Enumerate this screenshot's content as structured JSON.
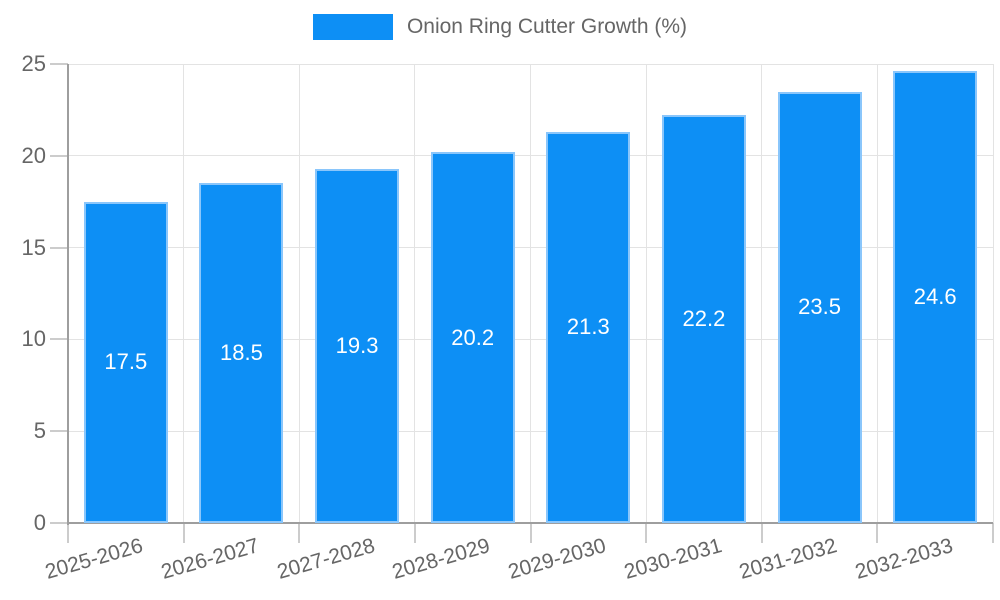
{
  "legend": {
    "label": "Onion Ring Cutter Growth (%)"
  },
  "colors": {
    "bar": "#0d8ff5",
    "bar_border": "#8ac6fb",
    "axis": "#9e9e9e",
    "tick": "#cccccc",
    "grid": "#e3e3e3",
    "text": "#666666",
    "value_label": "#ffffff",
    "background": "#ffffff"
  },
  "chart_data": {
    "type": "bar",
    "title": "",
    "series": [
      {
        "name": "Onion Ring Cutter Growth (%)",
        "values": [
          17.5,
          18.5,
          19.3,
          20.2,
          21.3,
          22.2,
          23.5,
          24.6
        ]
      }
    ],
    "categories": [
      "2025-2026",
      "2026-2027",
      "2027-2028",
      "2028-2029",
      "2029-2030",
      "2030-2031",
      "2031-2032",
      "2032-2033"
    ],
    "xlabel": "",
    "ylabel": "",
    "ylim": [
      0,
      25
    ],
    "yticks": [
      0,
      5,
      10,
      15,
      20,
      25
    ],
    "grid": true,
    "legend_position": "top-center",
    "value_labels_position": "inside-center"
  }
}
